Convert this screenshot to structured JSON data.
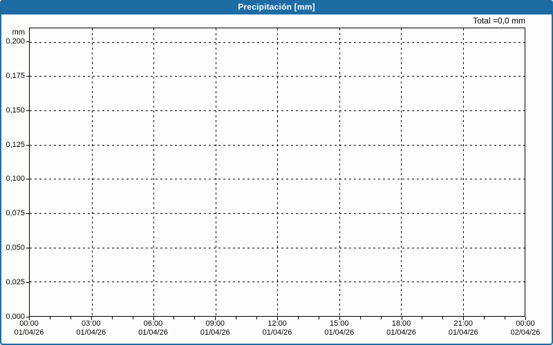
{
  "window": {
    "title": "Precipitación [mm]"
  },
  "colors": {
    "accent": "#1e6ca4",
    "page_bg": "#fdfdfb",
    "grid": "#000000",
    "text": "#000000",
    "title_text": "#ffffff"
  },
  "chart": {
    "total_label": "Total =0,0 mm",
    "y_unit": "mm",
    "y_ticks": [
      "0,200",
      "0,175",
      "0,150",
      "0,125",
      "0,100",
      "0,075",
      "0,050",
      "0,025",
      "0,000"
    ],
    "x_ticks": [
      {
        "time": "00:00",
        "date": "01/04/26"
      },
      {
        "time": "03:00",
        "date": "01/04/26"
      },
      {
        "time": "06:00",
        "date": "01/04/26"
      },
      {
        "time": "09:00",
        "date": "01/04/26"
      },
      {
        "time": "12:00",
        "date": "01/04/26"
      },
      {
        "time": "15:00",
        "date": "01/04/26"
      },
      {
        "time": "18:00",
        "date": "01/04/26"
      },
      {
        "time": "21:00",
        "date": "01/04/26"
      },
      {
        "time": "00:00",
        "date": "02/04/26"
      }
    ],
    "minor_ticks_per_major": 3
  },
  "chart_data": {
    "type": "bar",
    "title": "Precipitación [mm]",
    "ylabel": "mm",
    "ylim": [
      0,
      0.21
    ],
    "y_tick_values": [
      0.2,
      0.175,
      0.15,
      0.125,
      0.1,
      0.075,
      0.05,
      0.025,
      0.0
    ],
    "x_tick_labels": [
      "01/04/26 00:00",
      "01/04/26 03:00",
      "01/04/26 06:00",
      "01/04/26 09:00",
      "01/04/26 12:00",
      "01/04/26 15:00",
      "01/04/26 18:00",
      "01/04/26 21:00",
      "02/04/26 00:00"
    ],
    "series": [
      {
        "name": "Precipitación",
        "values": []
      }
    ],
    "total": 0.0,
    "total_unit": "mm",
    "grid": true,
    "legend": false,
    "annotations": [
      "Total =0,0 mm"
    ]
  }
}
